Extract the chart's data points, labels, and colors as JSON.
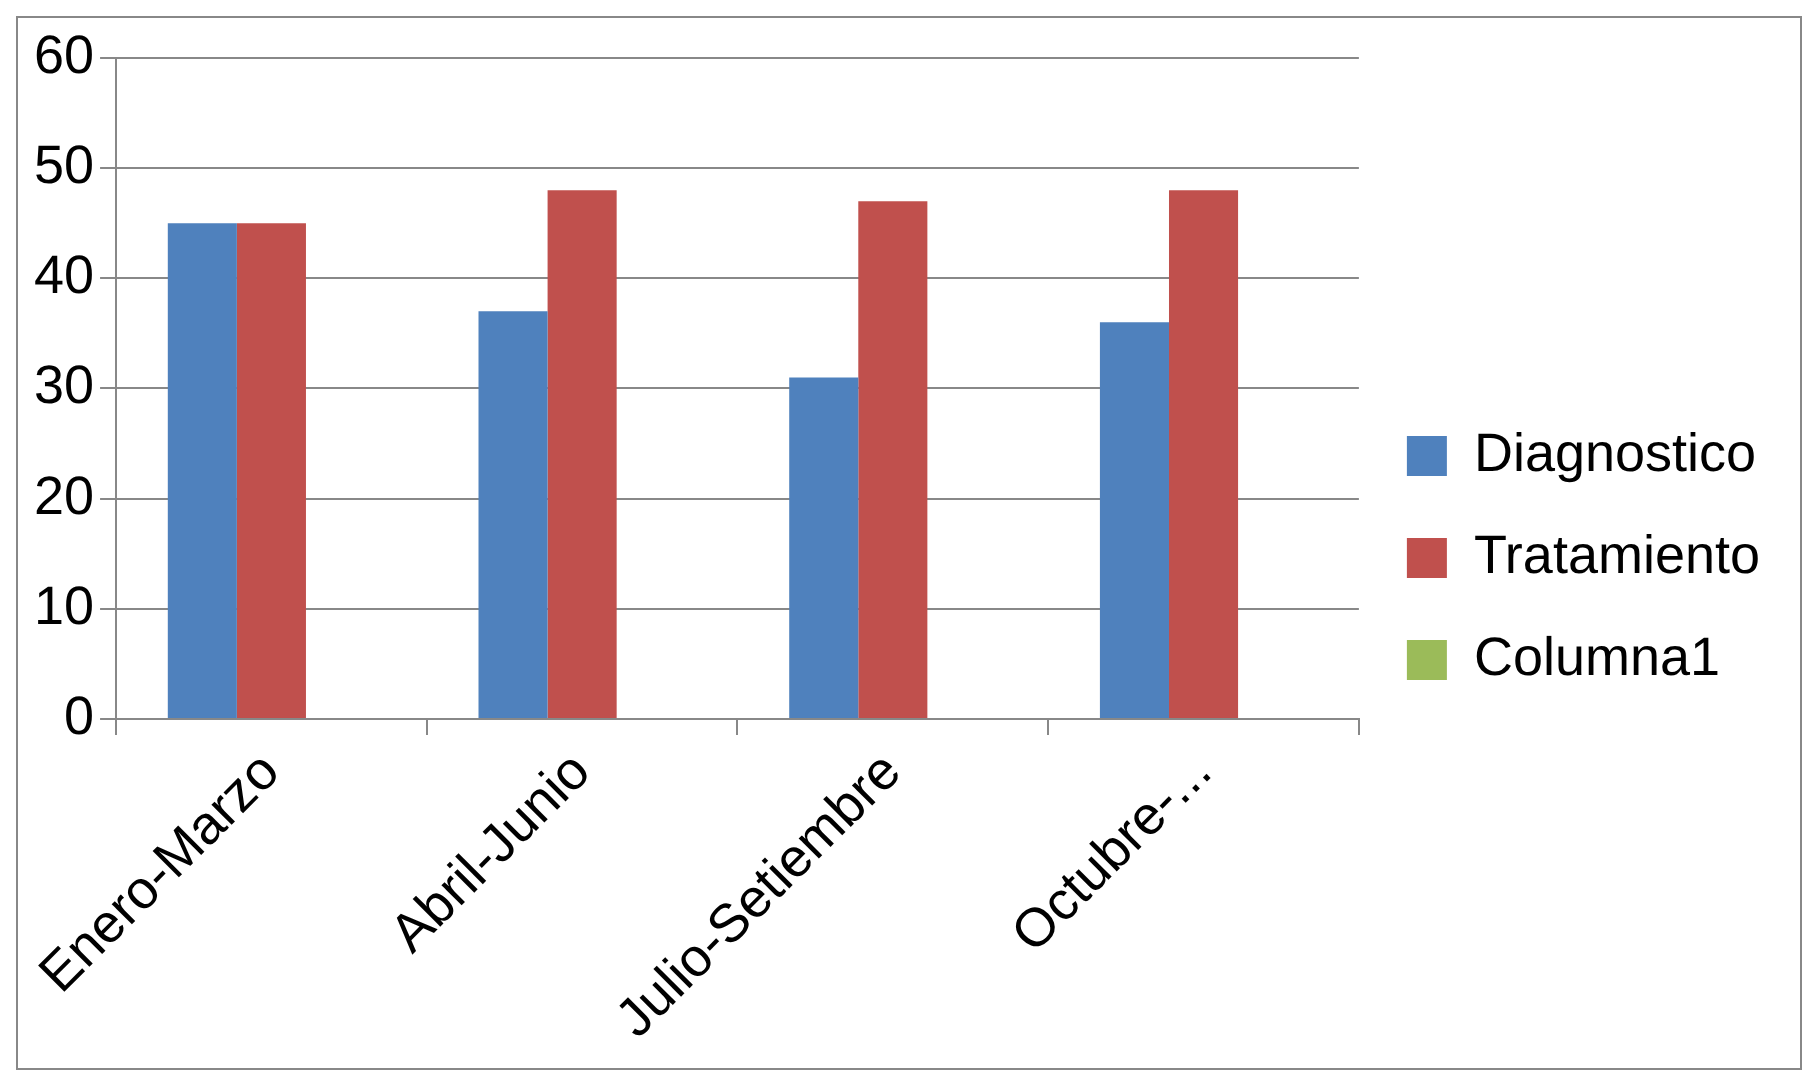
{
  "chart_data": {
    "type": "bar",
    "categories": [
      "Enero-Marzo",
      "Abril-Junio",
      "Julio-Setiembre",
      "Octubre-..."
    ],
    "series": [
      {
        "name": "Diagnostico",
        "color": "#4f81bd",
        "values": [
          45,
          37,
          31,
          36
        ]
      },
      {
        "name": "Tratamiento",
        "color": "#c0504d",
        "values": [
          45,
          48,
          47,
          48
        ]
      },
      {
        "name": "Columna1",
        "color": "#9bbb59",
        "values": [
          null,
          null,
          null,
          null
        ]
      }
    ],
    "ylim": [
      0,
      60
    ],
    "yticks": [
      0,
      10,
      20,
      30,
      40,
      50,
      60
    ],
    "grid": "y",
    "legend": "right"
  }
}
